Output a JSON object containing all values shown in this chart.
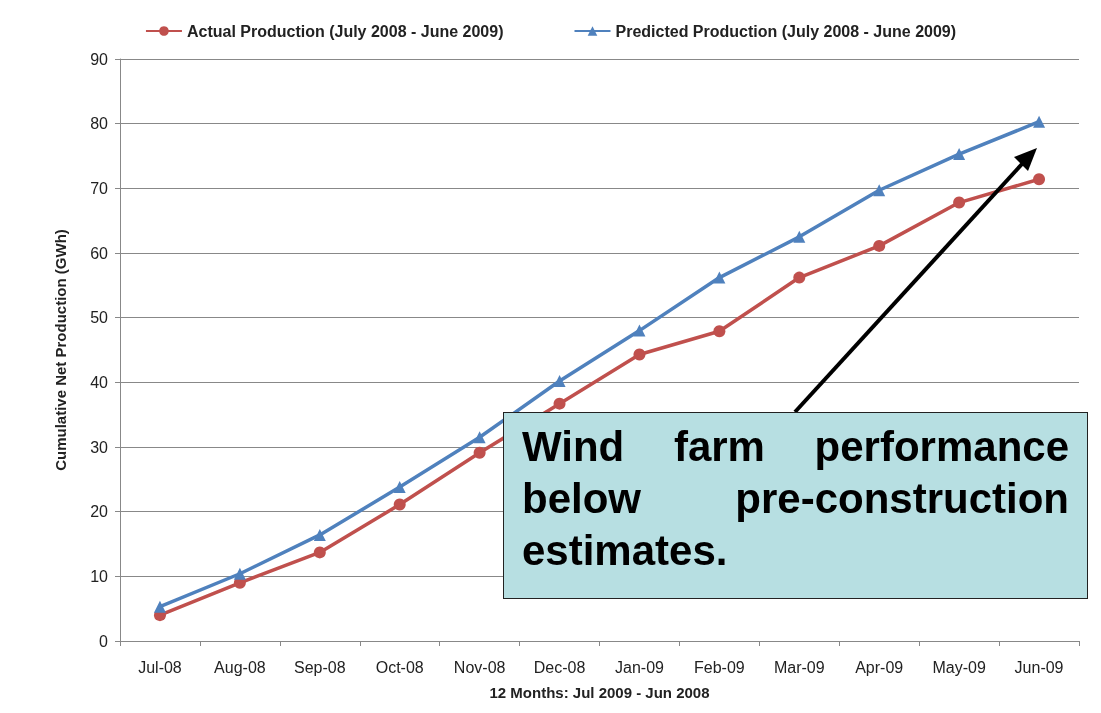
{
  "chart_data": {
    "type": "line",
    "xlabel": "12 Months: Jul 2009 - Jun 2008",
    "ylabel": "Cumulative Net Production (GWh)",
    "categories": [
      "Jul-08",
      "Aug-08",
      "Sep-08",
      "Oct-08",
      "Nov-08",
      "Dec-08",
      "Jan-09",
      "Feb-09",
      "Mar-09",
      "Apr-09",
      "May-09",
      "Jun-09"
    ],
    "series": [
      {
        "name": "Actual Production (July 2008 - June 2009)",
        "color": "#c0504d",
        "marker": "circle",
        "values": [
          4,
          9,
          13.7,
          21.1,
          29.1,
          36.7,
          44.3,
          47.9,
          56.2,
          61.1,
          67.8,
          71.4
        ]
      },
      {
        "name": "Predicted Production (July 2008 - June 2009)",
        "color": "#4f81bd",
        "marker": "triangle",
        "values": [
          5.3,
          10.4,
          16.4,
          23.8,
          31.5,
          40.2,
          48,
          56.2,
          62.5,
          69.7,
          75.3,
          80.3
        ]
      }
    ],
    "ylim": [
      0,
      90
    ],
    "yticks": [
      0,
      10,
      20,
      30,
      40,
      50,
      60,
      70,
      80,
      90
    ],
    "grid": "y",
    "legend": "top",
    "annotations": [
      "Wind farm performance below pre-construction estimates."
    ]
  }
}
